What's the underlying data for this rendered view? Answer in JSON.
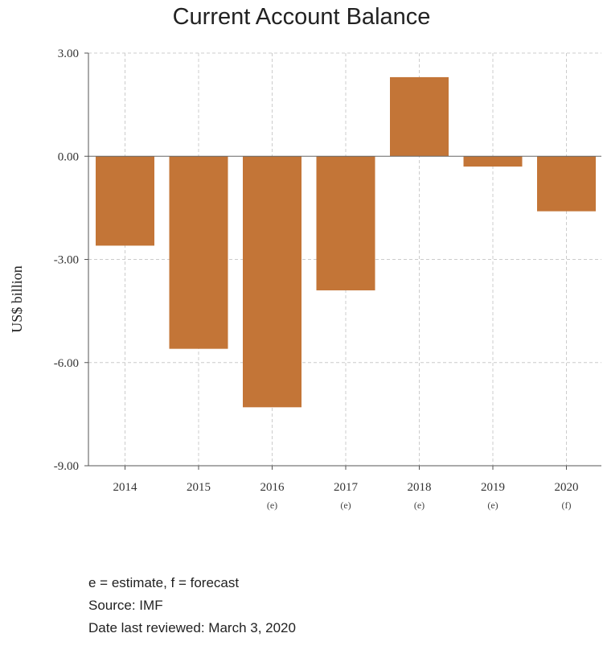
{
  "chart_data": {
    "type": "bar",
    "title": "Current Account Balance",
    "ylabel": "US$ billion",
    "xlabel": "",
    "ylim": [
      -9,
      3
    ],
    "yticks": [
      3,
      0,
      -3,
      -6,
      -9
    ],
    "ytick_labels": [
      "3.00",
      "0.00",
      "-3.00",
      "-6.00",
      "-9.00"
    ],
    "categories": [
      "2014",
      "2015",
      "2016",
      "2017",
      "2018",
      "2019",
      "2020"
    ],
    "category_notes": [
      "",
      "",
      "(e)",
      "(e)",
      "(e)",
      "(e)",
      "(f)"
    ],
    "values": [
      -2.6,
      -5.6,
      -7.3,
      -3.9,
      2.3,
      -0.3,
      -1.6
    ],
    "bar_color": "#c37537",
    "grid": true
  },
  "notes": {
    "legend": "e = estimate, f = forecast",
    "source": "Source: IMF",
    "reviewed": "Date last reviewed: March 3, 2020"
  }
}
